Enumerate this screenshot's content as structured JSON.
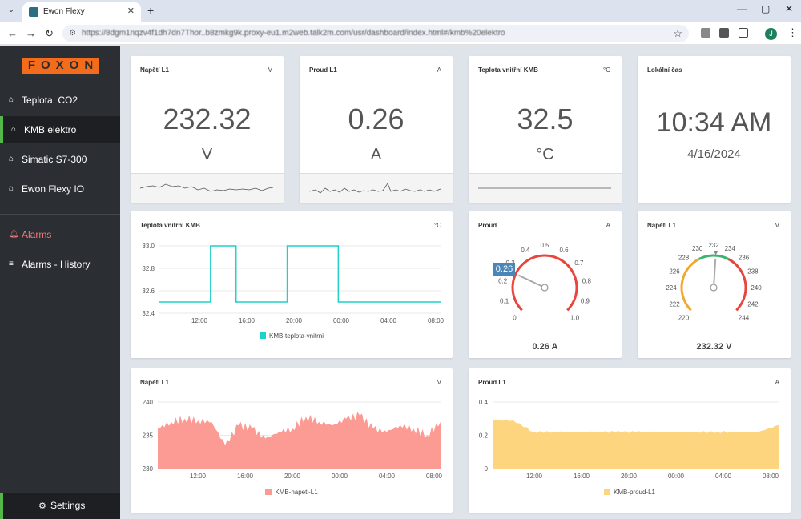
{
  "browser": {
    "tab_title": "Ewon Flexy",
    "url": "https://8dgm1nqzv4f1dh7dn7Thor..b8zmkg9k.proxy-eu1.m2web.talk2m.com/usr/dashboard/index.html#/kmb%20elektro",
    "profile_initial": "J"
  },
  "sidebar": {
    "logo": "FOXON",
    "items": [
      {
        "label": "Teplota, CO2",
        "icon": "home-icon"
      },
      {
        "label": "KMB elektro",
        "icon": "home-icon"
      },
      {
        "label": "Simatic S7-300",
        "icon": "home-icon"
      },
      {
        "label": "Ewon Flexy IO",
        "icon": "home-icon"
      },
      {
        "label": "Alarms",
        "icon": "bell-icon"
      },
      {
        "label": "Alarms - History",
        "icon": "database-icon"
      }
    ],
    "settings_label": "Settings"
  },
  "cards": {
    "voltage": {
      "title": "Napětí L1",
      "unit": "V",
      "value": "232.32",
      "unit_big": "V"
    },
    "current": {
      "title": "Proud L1",
      "unit": "A",
      "value": "0.26",
      "unit_big": "A"
    },
    "temp": {
      "title": "Teplota vnitřní KMB",
      "unit": "°C",
      "value": "32.5",
      "unit_big": "°C"
    },
    "clock": {
      "title": "Lokální čas",
      "time": "10:34 AM",
      "date": "4/16/2024"
    }
  },
  "temp_chart": {
    "title": "Teplota vnitřní KMB",
    "unit": "°C",
    "legend": "KMB-teplota-vnitrni"
  },
  "gauge_current": {
    "title": "Proud",
    "unit": "A",
    "badge": "0.26",
    "readout": "0.26 A"
  },
  "gauge_voltage": {
    "title": "Napětí L1",
    "unit": "V",
    "readout": "232.32 V"
  },
  "voltage_chart": {
    "title": "Napětí L1",
    "unit": "V",
    "legend": "KMB-napeti-L1"
  },
  "current_chart": {
    "title": "Proud L1",
    "unit": "A",
    "legend": "KMB-proud-L1"
  },
  "colors": {
    "accent": "#54b848",
    "teal": "#1fd1c6",
    "salmon": "#fb9b94",
    "yellow": "#fdd57e",
    "alarm": "#ef7a7a"
  },
  "chart_data": [
    {
      "type": "line",
      "title": "Teplota vnitřní KMB",
      "ylim": [
        32.4,
        33.0
      ],
      "yticks": [
        "33.0",
        "32.8",
        "32.6",
        "32.4"
      ],
      "xticks": [
        "12:00",
        "16:00",
        "20:00",
        "00:00",
        "04:00",
        "08:00"
      ],
      "series": [
        {
          "name": "KMB-teplota-vnitrni",
          "values": [
            32.5,
            32.5,
            33.0,
            32.5,
            32.5,
            33.0,
            33.0,
            32.5,
            32.5,
            32.5,
            32.5,
            32.5
          ]
        }
      ]
    },
    {
      "type": "gauge",
      "title": "Proud",
      "min": 0,
      "max": 1.0,
      "ticks": [
        "0",
        "0.1",
        "0.2",
        "0.3",
        "0.4",
        "0.5",
        "0.6",
        "0.7",
        "0.8",
        "0.9",
        "1.0"
      ],
      "value": 0.26
    },
    {
      "type": "gauge",
      "title": "Napětí L1",
      "min": 220,
      "max": 244,
      "ticks": [
        "220",
        "222",
        "224",
        "226",
        "228",
        "230",
        "232",
        "234",
        "236",
        "238",
        "240",
        "242",
        "244"
      ],
      "value": 232.32
    },
    {
      "type": "area",
      "title": "Napětí L1",
      "ylim": [
        230,
        240
      ],
      "yticks": [
        "240",
        "235",
        "230"
      ],
      "xticks": [
        "12:00",
        "16:00",
        "20:00",
        "00:00",
        "04:00",
        "08:00"
      ],
      "series": [
        {
          "name": "KMB-napeti-L1",
          "values": [
            236,
            237,
            237.5,
            237.2,
            237,
            233.5,
            236.5,
            236,
            234.5,
            235.5,
            236,
            237.8,
            237,
            236.5,
            237.5,
            238,
            236,
            235.5,
            236.5,
            236,
            235,
            237
          ]
        }
      ]
    },
    {
      "type": "area",
      "title": "Proud L1",
      "ylim": [
        0,
        0.4
      ],
      "yticks": [
        "0.4",
        "0.2",
        "0"
      ],
      "xticks": [
        "12:00",
        "16:00",
        "20:00",
        "00:00",
        "04:00",
        "08:00"
      ],
      "series": [
        {
          "name": "KMB-proud-L1",
          "values": [
            0.29,
            0.29,
            0.22,
            0.22,
            0.22,
            0.22,
            0.22,
            0.22,
            0.22,
            0.22,
            0.22,
            0.22,
            0.22,
            0.22,
            0.26
          ]
        }
      ]
    }
  ]
}
